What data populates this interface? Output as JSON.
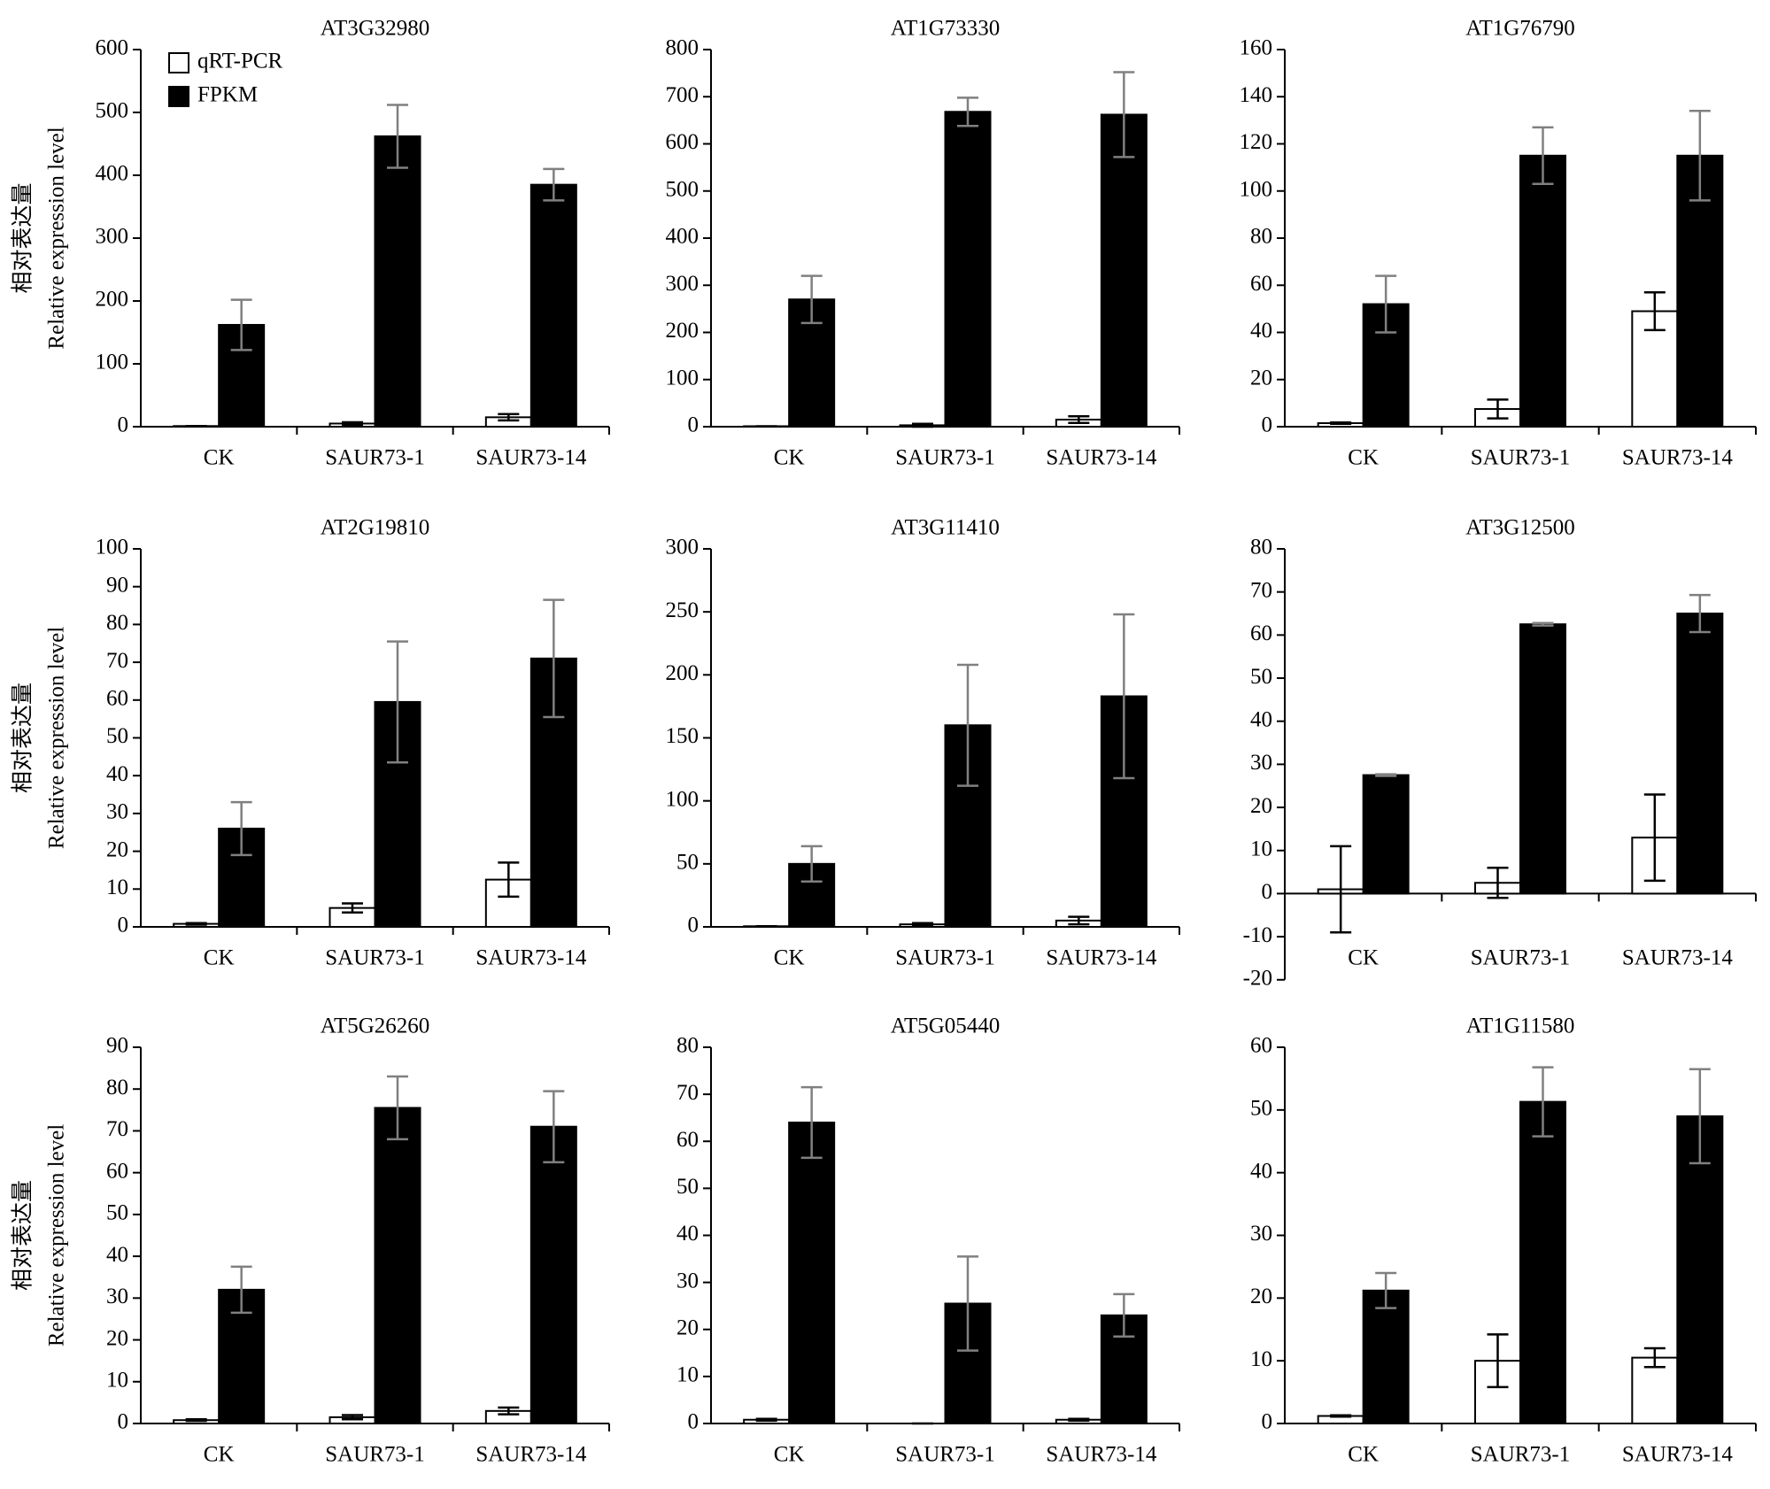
{
  "chart_data": [
    {
      "type": "bar",
      "title": "AT3G32980",
      "ylabel": [
        "相对表达量",
        "Relative expression level"
      ],
      "legend": "upper left",
      "categories": [
        "CK",
        "SAUR73-1",
        "SAUR73-14"
      ],
      "ylim": [
        0,
        600
      ],
      "yticks": [
        0,
        100,
        200,
        300,
        400,
        500,
        600
      ],
      "series": [
        {
          "name": "qRT-PCR",
          "color": "#ffffff",
          "error_color": "#000000",
          "values": [
            1,
            5,
            15
          ],
          "errors": [
            0,
            2,
            5
          ]
        },
        {
          "name": "FPKM",
          "color": "#000000",
          "error_color": "#808080",
          "values": [
            162,
            462,
            385
          ],
          "errors": [
            40,
            50,
            25
          ]
        }
      ]
    },
    {
      "type": "bar",
      "title": "AT1G73330",
      "categories": [
        "CK",
        "SAUR73-1",
        "SAUR73-14"
      ],
      "ylim": [
        0,
        800
      ],
      "yticks": [
        0,
        100,
        200,
        300,
        400,
        500,
        600,
        700,
        800
      ],
      "series": [
        {
          "name": "qRT-PCR",
          "color": "#ffffff",
          "error_color": "#000000",
          "values": [
            1,
            3,
            15
          ],
          "errors": [
            0,
            3,
            7
          ]
        },
        {
          "name": "FPKM",
          "color": "#000000",
          "error_color": "#808080",
          "values": [
            270,
            668,
            662
          ],
          "errors": [
            50,
            30,
            90
          ]
        }
      ]
    },
    {
      "type": "bar",
      "title": "AT1G76790",
      "categories": [
        "CK",
        "SAUR73-1",
        "SAUR73-14"
      ],
      "ylim": [
        0,
        160
      ],
      "yticks": [
        0,
        20,
        40,
        60,
        80,
        100,
        120,
        140,
        160
      ],
      "series": [
        {
          "name": "qRT-PCR",
          "color": "#ffffff",
          "error_color": "#000000",
          "values": [
            1.5,
            7.5,
            49
          ],
          "errors": [
            0.3,
            4,
            8
          ]
        },
        {
          "name": "FPKM",
          "color": "#000000",
          "error_color": "#808080",
          "values": [
            52,
            115,
            115
          ],
          "errors": [
            12,
            12,
            19
          ]
        }
      ]
    },
    {
      "type": "bar",
      "title": "AT2G19810",
      "ylabel": [
        "相对表达量",
        "Relative expression level"
      ],
      "categories": [
        "CK",
        "SAUR73-1",
        "SAUR73-14"
      ],
      "ylim": [
        0,
        100
      ],
      "yticks": [
        0,
        10,
        20,
        30,
        40,
        50,
        60,
        70,
        80,
        90,
        100
      ],
      "series": [
        {
          "name": "qRT-PCR",
          "color": "#ffffff",
          "error_color": "#000000",
          "values": [
            0.8,
            5,
            12.5
          ],
          "errors": [
            0.2,
            1.2,
            4.5
          ]
        },
        {
          "name": "FPKM",
          "color": "#000000",
          "error_color": "#808080",
          "values": [
            26,
            59.5,
            71
          ],
          "errors": [
            7,
            16,
            15.5
          ]
        }
      ]
    },
    {
      "type": "bar",
      "title": "AT3G11410",
      "categories": [
        "CK",
        "SAUR73-1",
        "SAUR73-14"
      ],
      "ylim": [
        0,
        300
      ],
      "yticks": [
        0,
        50,
        100,
        150,
        200,
        250,
        300
      ],
      "series": [
        {
          "name": "qRT-PCR",
          "color": "#ffffff",
          "error_color": "#000000",
          "values": [
            0.5,
            2,
            5
          ],
          "errors": [
            0,
            1,
            3
          ]
        },
        {
          "name": "FPKM",
          "color": "#000000",
          "error_color": "#808080",
          "values": [
            50,
            160,
            183
          ],
          "errors": [
            14,
            48,
            65
          ]
        }
      ]
    },
    {
      "type": "bar",
      "title": "AT3G12500",
      "categories": [
        "CK",
        "SAUR73-1",
        "SAUR73-14"
      ],
      "ylim": [
        -20,
        80
      ],
      "yticks": [
        -20,
        -10,
        0,
        10,
        20,
        30,
        40,
        50,
        60,
        70,
        80
      ],
      "series": [
        {
          "name": "qRT-PCR",
          "color": "#ffffff",
          "error_color": "#000000",
          "values": [
            1,
            2.5,
            13
          ],
          "errors": [
            10,
            3.5,
            10
          ]
        },
        {
          "name": "FPKM",
          "color": "#000000",
          "error_color": "#808080",
          "values": [
            27.5,
            62.5,
            65
          ],
          "errors": [
            0.2,
            0.3,
            4.3
          ]
        }
      ]
    },
    {
      "type": "bar",
      "title": "AT5G26260",
      "ylabel": [
        "相对表达量",
        "Relative expression level"
      ],
      "categories": [
        "CK",
        "SAUR73-1",
        "SAUR73-14"
      ],
      "ylim": [
        0,
        90
      ],
      "yticks": [
        0,
        10,
        20,
        30,
        40,
        50,
        60,
        70,
        80,
        90
      ],
      "series": [
        {
          "name": "qRT-PCR",
          "color": "#ffffff",
          "error_color": "#000000",
          "values": [
            0.8,
            1.5,
            3
          ],
          "errors": [
            0.2,
            0.5,
            0.8
          ]
        },
        {
          "name": "FPKM",
          "color": "#000000",
          "error_color": "#808080",
          "values": [
            32,
            75.5,
            71
          ],
          "errors": [
            5.5,
            7.5,
            8.5
          ]
        }
      ]
    },
    {
      "type": "bar",
      "title": "AT5G05440",
      "categories": [
        "CK",
        "SAUR73-1",
        "SAUR73-14"
      ],
      "ylim": [
        0,
        80
      ],
      "yticks": [
        0,
        10,
        20,
        30,
        40,
        50,
        60,
        70,
        80
      ],
      "series": [
        {
          "name": "qRT-PCR",
          "color": "#ffffff",
          "error_color": "#000000",
          "values": [
            0.8,
            0,
            0.8
          ],
          "errors": [
            0.2,
            0,
            0.2
          ]
        },
        {
          "name": "FPKM",
          "color": "#000000",
          "error_color": "#808080",
          "values": [
            64,
            25.5,
            23
          ],
          "errors": [
            7.5,
            10,
            4.5
          ]
        }
      ]
    },
    {
      "type": "bar",
      "title": "AT1G11580",
      "categories": [
        "CK",
        "SAUR73-1",
        "SAUR73-14"
      ],
      "ylim": [
        0,
        60
      ],
      "yticks": [
        0,
        10,
        20,
        30,
        40,
        50,
        60
      ],
      "series": [
        {
          "name": "qRT-PCR",
          "color": "#ffffff",
          "error_color": "#000000",
          "values": [
            1.2,
            10,
            10.5
          ],
          "errors": [
            0.1,
            4.2,
            1.5
          ]
        },
        {
          "name": "FPKM",
          "color": "#000000",
          "error_color": "#808080",
          "values": [
            21.2,
            51.3,
            49
          ],
          "errors": [
            2.8,
            5.5,
            7.5
          ]
        }
      ]
    }
  ]
}
